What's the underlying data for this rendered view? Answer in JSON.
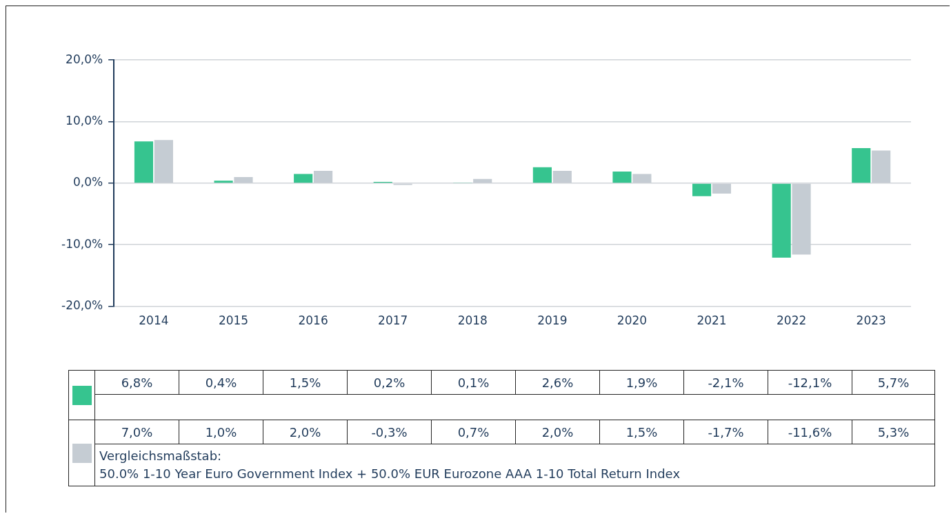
{
  "chart_data": {
    "type": "bar",
    "categories": [
      "2014",
      "2015",
      "2016",
      "2017",
      "2018",
      "2019",
      "2020",
      "2021",
      "2022",
      "2023"
    ],
    "series": [
      {
        "color": "#36c48f",
        "values": [
          6.8,
          0.4,
          1.5,
          0.2,
          0.1,
          2.6,
          1.9,
          -2.1,
          -12.1,
          5.7
        ],
        "value_labels": [
          "6,8%",
          "0,4%",
          "1,5%",
          "0,2%",
          "0,1%",
          "2,6%",
          "1,9%",
          "-2,1%",
          "-12,1%",
          "5,7%"
        ]
      },
      {
        "name": "Vergleichsmaßstab:\n50.0% 1-10 Year Euro Government Index + 50.0% EUR Eurozone AAA 1-10 Total Return Index",
        "color": "#c5ccd3",
        "values": [
          7.0,
          1.0,
          2.0,
          -0.3,
          0.7,
          2.0,
          1.5,
          -1.7,
          -11.6,
          5.3
        ],
        "value_labels": [
          "7,0%",
          "1,0%",
          "2,0%",
          "-0,3%",
          "0,7%",
          "2,0%",
          "1,5%",
          "-1,7%",
          "-11,6%",
          "5,3%"
        ]
      }
    ],
    "ylim": [
      -20,
      20
    ],
    "yticks": [
      {
        "value": -20,
        "label": "-20,0%"
      },
      {
        "value": -10,
        "label": "-10,0%"
      },
      {
        "value": 0,
        "label": "0,0%"
      },
      {
        "value": 10,
        "label": "10,0%"
      },
      {
        "value": 20,
        "label": "20,0%"
      }
    ],
    "grid": "y",
    "legend": "bottom"
  }
}
